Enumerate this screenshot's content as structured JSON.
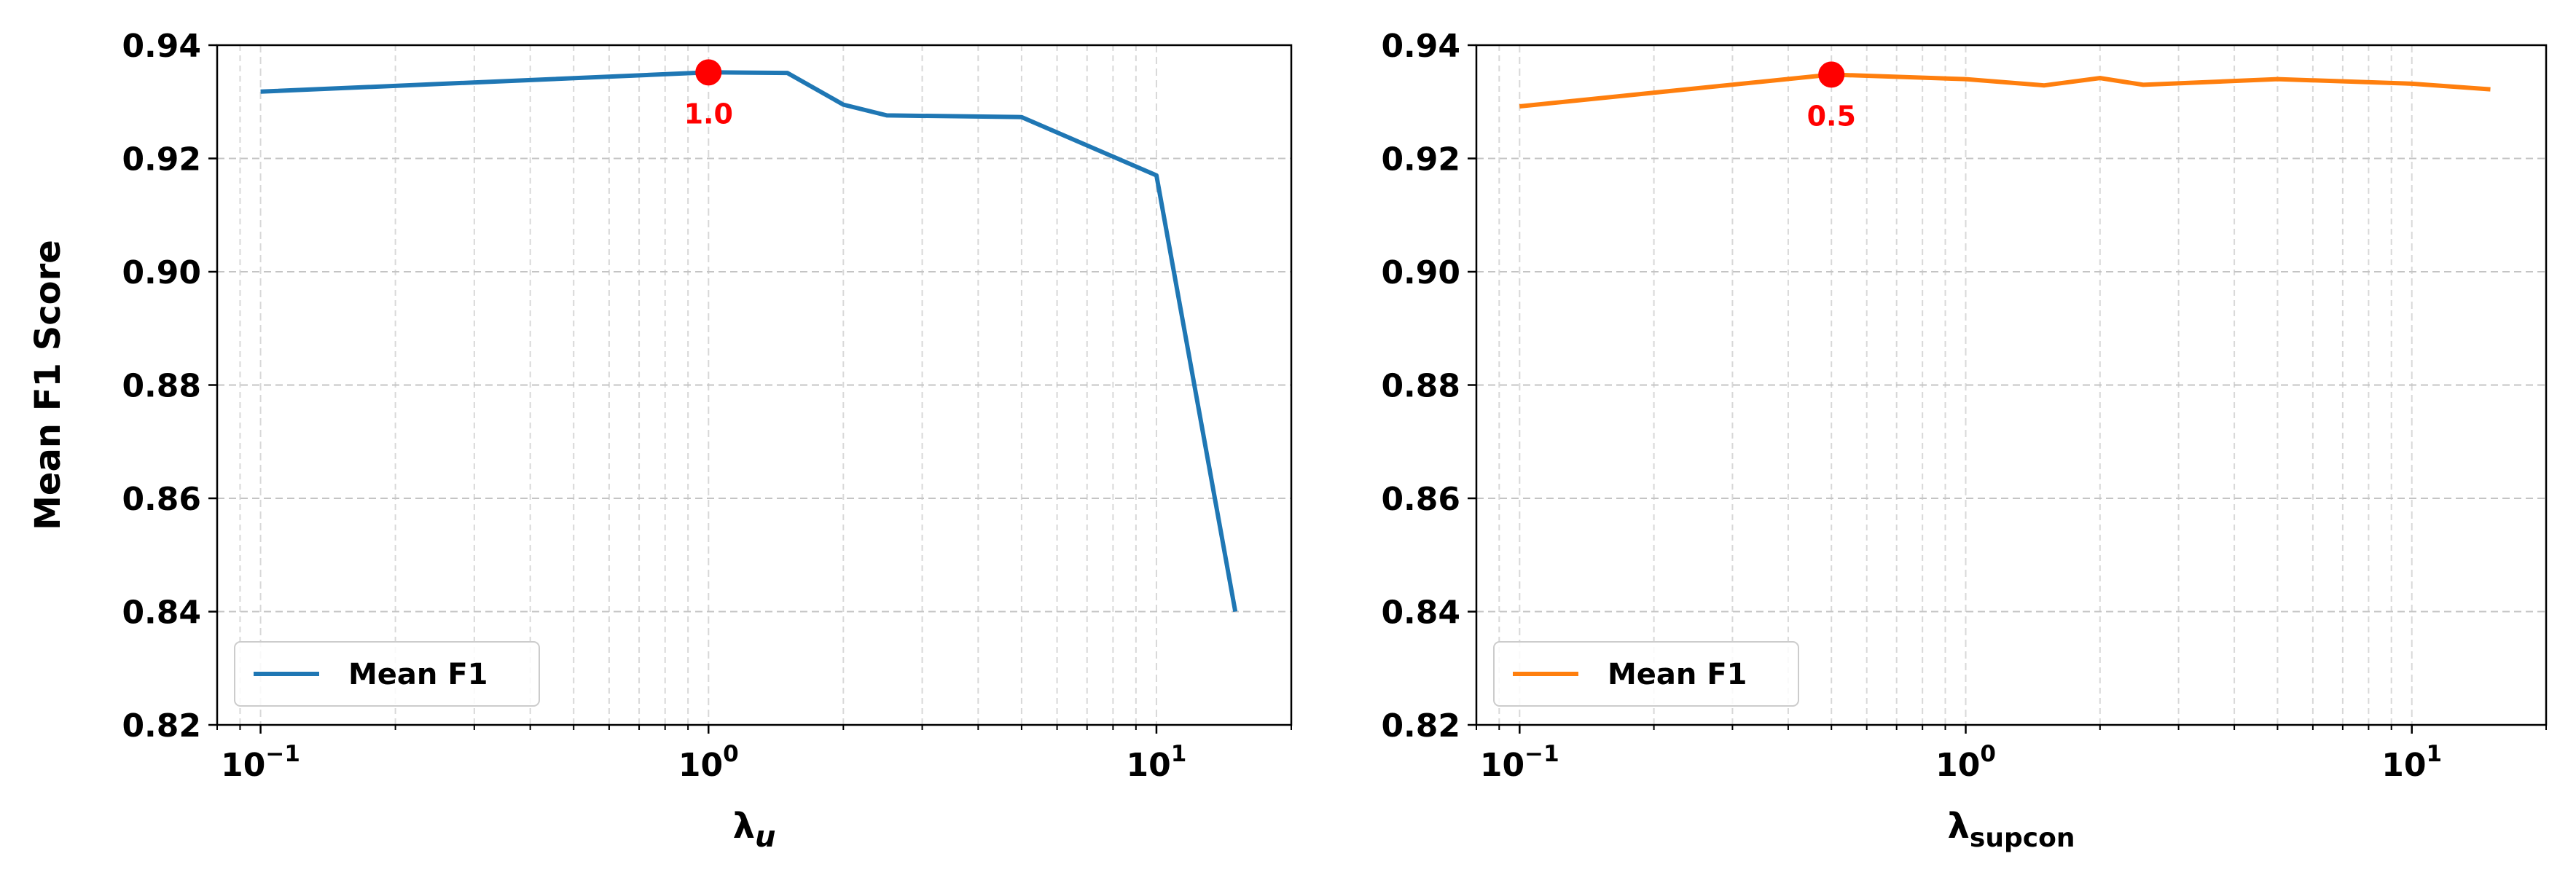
{
  "chart_data": [
    {
      "type": "line",
      "xscale": "log",
      "xlim": [
        0.08,
        20
      ],
      "ylim": [
        0.82,
        0.94
      ],
      "yticks": [
        "0.82",
        "0.84",
        "0.86",
        "0.88",
        "0.90",
        "0.92",
        "0.94"
      ],
      "ytick_values": [
        0.82,
        0.84,
        0.86,
        0.88,
        0.9,
        0.92,
        0.94
      ],
      "xticks": [
        {
          "base": "10",
          "exp": "−1",
          "value": 0.1
        },
        {
          "base": "10",
          "exp": "0",
          "value": 1
        },
        {
          "base": "10",
          "exp": "1",
          "value": 10
        }
      ],
      "xlabel": {
        "main": "λ",
        "sub": "u",
        "sub_italic": true
      },
      "ylabel": "Mean F1 Score",
      "grid": true,
      "legend_position": "lower-left",
      "series": [
        {
          "name": "Mean F1",
          "color": "#1f77b4",
          "x": [
            0.1,
            1.0,
            1.5,
            2.0,
            2.5,
            5.0,
            10.0,
            15.0
          ],
          "y": [
            0.9318,
            0.9352,
            0.9351,
            0.9295,
            0.9276,
            0.9273,
            0.917,
            0.84
          ]
        }
      ],
      "highlight": {
        "x": 1.0,
        "y": 0.9352,
        "label": "1.0",
        "color": "#ff0000"
      }
    },
    {
      "type": "line",
      "xscale": "log",
      "xlim": [
        0.08,
        20
      ],
      "ylim": [
        0.82,
        0.94
      ],
      "yticks": [
        "0.82",
        "0.84",
        "0.86",
        "0.88",
        "0.90",
        "0.92",
        "0.94"
      ],
      "ytick_values": [
        0.82,
        0.84,
        0.86,
        0.88,
        0.9,
        0.92,
        0.94
      ],
      "xticks": [
        {
          "base": "10",
          "exp": "−1",
          "value": 0.1
        },
        {
          "base": "10",
          "exp": "0",
          "value": 1
        },
        {
          "base": "10",
          "exp": "1",
          "value": 10
        }
      ],
      "xlabel": {
        "main": "λ",
        "sub": "supcon",
        "sub_italic": false
      },
      "ylabel": "",
      "grid": true,
      "legend_position": "lower-left",
      "series": [
        {
          "name": "Mean F1",
          "color": "#ff7f0e",
          "x": [
            0.1,
            0.5,
            1.0,
            1.5,
            2.0,
            2.5,
            5.0,
            10.0,
            15.0
          ],
          "y": [
            0.9292,
            0.9348,
            0.934,
            0.9329,
            0.9342,
            0.933,
            0.934,
            0.9332,
            0.9322
          ]
        }
      ],
      "highlight": {
        "x": 0.5,
        "y": 0.9348,
        "label": "0.5",
        "color": "#ff0000"
      }
    }
  ]
}
